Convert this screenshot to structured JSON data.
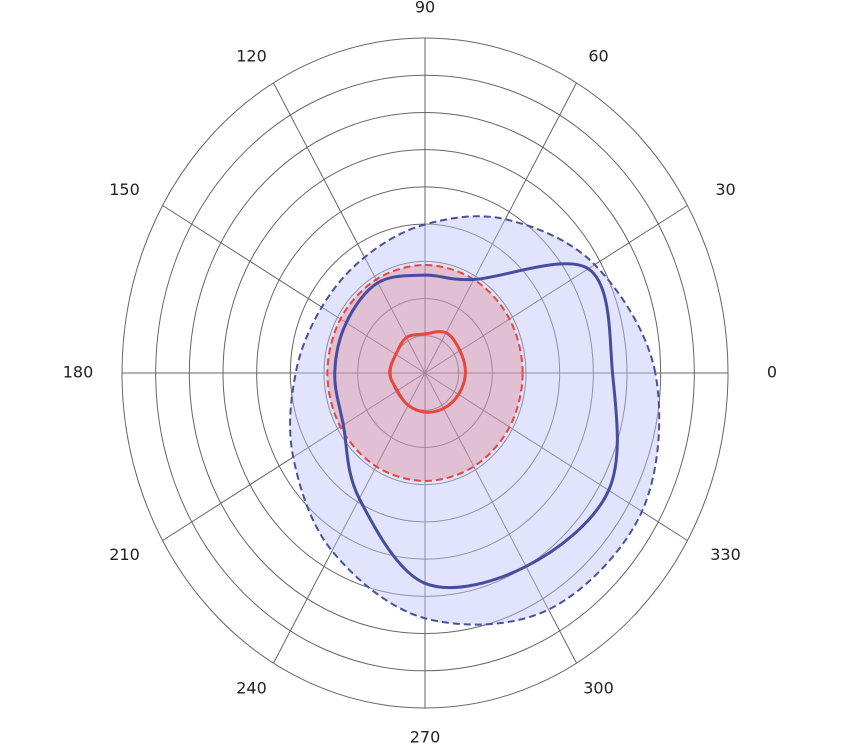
{
  "chart_data": {
    "type": "polar",
    "theta": [
      0,
      30,
      60,
      90,
      120,
      150,
      180,
      210,
      240,
      270,
      300,
      330
    ],
    "thetaticks": [
      0,
      30,
      60,
      90,
      120,
      150,
      180,
      210,
      240,
      270,
      300,
      330
    ],
    "rlim": [
      0,
      9
    ],
    "rticks": [
      1,
      2,
      3,
      4,
      5,
      6,
      7,
      8,
      9
    ],
    "grid": true,
    "series": [
      {
        "color": "#4a4f9e",
        "fill": "rgba(190,196,250,0.45)",
        "dashed": true,
        "r": [
          6.84,
          5.82,
          4.77,
          3.99,
          3.59,
          3.54,
          3.84,
          4.52,
          5.52,
          6.59,
          7.34,
          7.44
        ]
      },
      {
        "color": "#e8453c",
        "fill": "rgba(225,110,120,0.3)",
        "dashed": true,
        "r": [
          2.9,
          2.9,
          2.9,
          2.9,
          2.9,
          2.9,
          2.9,
          2.9,
          2.9,
          2.9,
          2.9,
          2.9
        ]
      },
      {
        "color": "#474d9e",
        "fill": "none",
        "dashed": false,
        "r": [
          5.57,
          5.6,
          2.9,
          2.63,
          2.8,
          2.7,
          2.68,
          2.8,
          3.9,
          5.65,
          6.0,
          6.3
        ]
      },
      {
        "color": "#e8453c",
        "fill": "none",
        "dashed": false,
        "r": [
          1.2,
          1.2,
          1.25,
          1.05,
          1.1,
          1.0,
          1.05,
          0.95,
          1.0,
          1.05,
          1.1,
          1.15
        ]
      }
    ]
  }
}
